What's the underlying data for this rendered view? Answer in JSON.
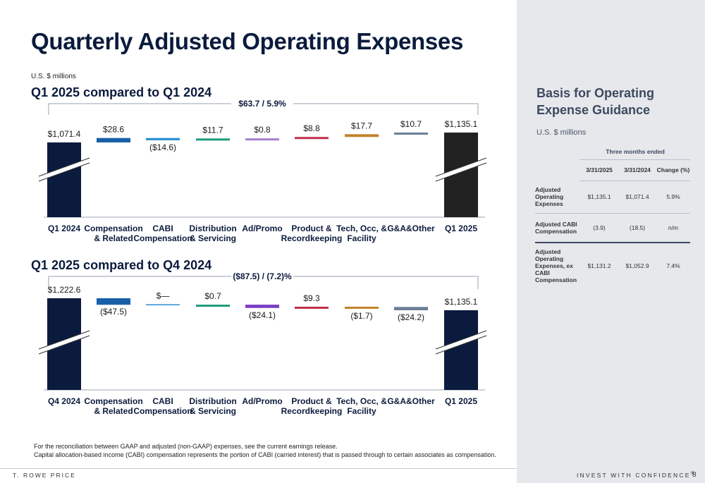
{
  "slide": {
    "title": "Quarterly Adjusted Operating Expenses",
    "units": "U.S. $ millions",
    "footnote_1": "For the reconciliation between GAAP and adjusted (non-GAAP) expenses, see the current earnings release.",
    "footnote_2": "Capital allocation-based income (CABI) compensation represents the portion of CABI (carried interest) that is passed through to certain associates as compensation.",
    "brand": "T. ROWE PRICE",
    "tagline": "INVEST WITH CONFIDENCE",
    "page_number": "8"
  },
  "chart_data": [
    {
      "type": "bar",
      "title": "Q1 2025 compared to Q1 2024",
      "bracket_label": "$63.7 / 5.9%",
      "categories": [
        "Q1 2024",
        "Compensation & Related",
        "CABI Compensation",
        "Distribution & Servicing",
        "Ad/Promo",
        "Product & Recordkeeping",
        "Tech, Occ, & Facility",
        "G&A&Other",
        "Q1 2025"
      ],
      "category_lines": [
        [
          "Q1 2024"
        ],
        [
          "Compensation",
          "& Related"
        ],
        [
          "CABI",
          "Compensation"
        ],
        [
          "Distribution",
          "& Servicing"
        ],
        [
          "Ad/Promo"
        ],
        [
          "Product &",
          "Recordkeeping"
        ],
        [
          "Tech, Occ, &",
          "Facility"
        ],
        [
          "G&A&Other"
        ],
        [
          "Q1 2025"
        ]
      ],
      "values": [
        1071.4,
        28.6,
        -14.6,
        11.7,
        0.8,
        8.8,
        17.7,
        10.7,
        1135.1
      ],
      "value_labels": [
        "$1,071.4",
        "$28.6",
        "($14.6)",
        "$11.7",
        "$0.8",
        "$8.8",
        "$17.7",
        "$10.7",
        "$1,135.1"
      ],
      "colors": [
        "#0b1b3d",
        "#1760a8",
        "#2b8fd1",
        "#1a9a7a",
        "#a47fcf",
        "#c0304d",
        "#c0822a",
        "#6b7f95",
        "#222222"
      ],
      "total_indices": [
        0,
        8
      ]
    },
    {
      "type": "bar",
      "title": "Q1 2025 compared to Q4 2024",
      "bracket_label": "($87.5) / (7.2)%",
      "categories": [
        "Q4 2024",
        "Compensation & Related",
        "CABI Compensation",
        "Distribution & Servicing",
        "Ad/Promo",
        "Product & Recordkeeping",
        "Tech, Occ, & Facility",
        "G&A&Other",
        "Q1 2025"
      ],
      "category_lines": [
        [
          "Q4 2024"
        ],
        [
          "Compensation",
          "& Related"
        ],
        [
          "CABI",
          "Compensation"
        ],
        [
          "Distribution",
          "& Servicing"
        ],
        [
          "Ad/Promo"
        ],
        [
          "Product &",
          "Recordkeeping"
        ],
        [
          "Tech, Occ, &",
          "Facility"
        ],
        [
          "G&A&Other"
        ],
        [
          "Q1 2025"
        ]
      ],
      "values": [
        1222.6,
        -47.5,
        0,
        0.7,
        -24.1,
        9.3,
        -1.7,
        -24.2,
        1135.1
      ],
      "value_labels": [
        "$1,222.6",
        "($47.5)",
        "$—",
        "$0.7",
        "($24.1)",
        "$9.3",
        "($1.7)",
        "($24.2)",
        "$1,135.1"
      ],
      "colors": [
        "#0b1b3d",
        "#1760a8",
        "#2b8fd1",
        "#1a9a7a",
        "#7b3fc4",
        "#c0304d",
        "#c0822a",
        "#6b7f95",
        "#0b1b3d"
      ],
      "total_indices": [
        0,
        8
      ]
    }
  ],
  "guidance": {
    "title_line1": "Basis for Operating",
    "title_line2": "Expense Guidance",
    "units": "U.S. $ millions",
    "group_header": "Three months ended",
    "col_headers": [
      "3/31/2025",
      "3/31/2024",
      "Change (%)"
    ],
    "rows": [
      {
        "label": "Adjusted Operating Expenses",
        "v1": "$1,135.1",
        "v2": "$1,071.4",
        "v3": "5.9%"
      },
      {
        "label": "Adjusted CABI Compensation",
        "v1": "(3.9)",
        "v2": "(18.5)",
        "v3": "n/m"
      },
      {
        "label": "Adjusted Operating Expenses, ex CABI Compensation",
        "v1": "$1,131.2",
        "v2": "$1,052.9",
        "v3": "7.4%"
      }
    ]
  }
}
